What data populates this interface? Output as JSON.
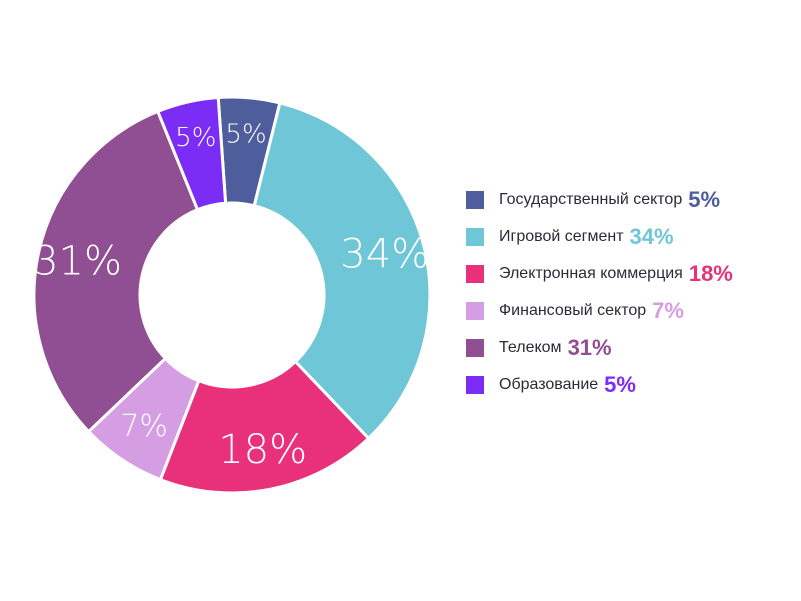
{
  "chart_data": {
    "type": "pie",
    "donut": true,
    "title": "",
    "slices": [
      {
        "label": "Государственный сектор",
        "value": 5,
        "display": "5%",
        "color": "#4e5d9c"
      },
      {
        "label": "Игровой сегмент",
        "value": 34,
        "display": "34%",
        "color": "#6ec6d6"
      },
      {
        "label": "Электронная коммерция",
        "value": 18,
        "display": "18%",
        "color": "#e8317a"
      },
      {
        "label": "Финансовый сектор",
        "value": 7,
        "display": "7%",
        "color": "#d59ee3"
      },
      {
        "label": "Телеком",
        "value": 31,
        "display": "31%",
        "color": "#904f92"
      },
      {
        "label": "Образование",
        "value": 5,
        "display": "5%",
        "color": "#7b2cf5"
      }
    ],
    "legend_position": "right"
  }
}
